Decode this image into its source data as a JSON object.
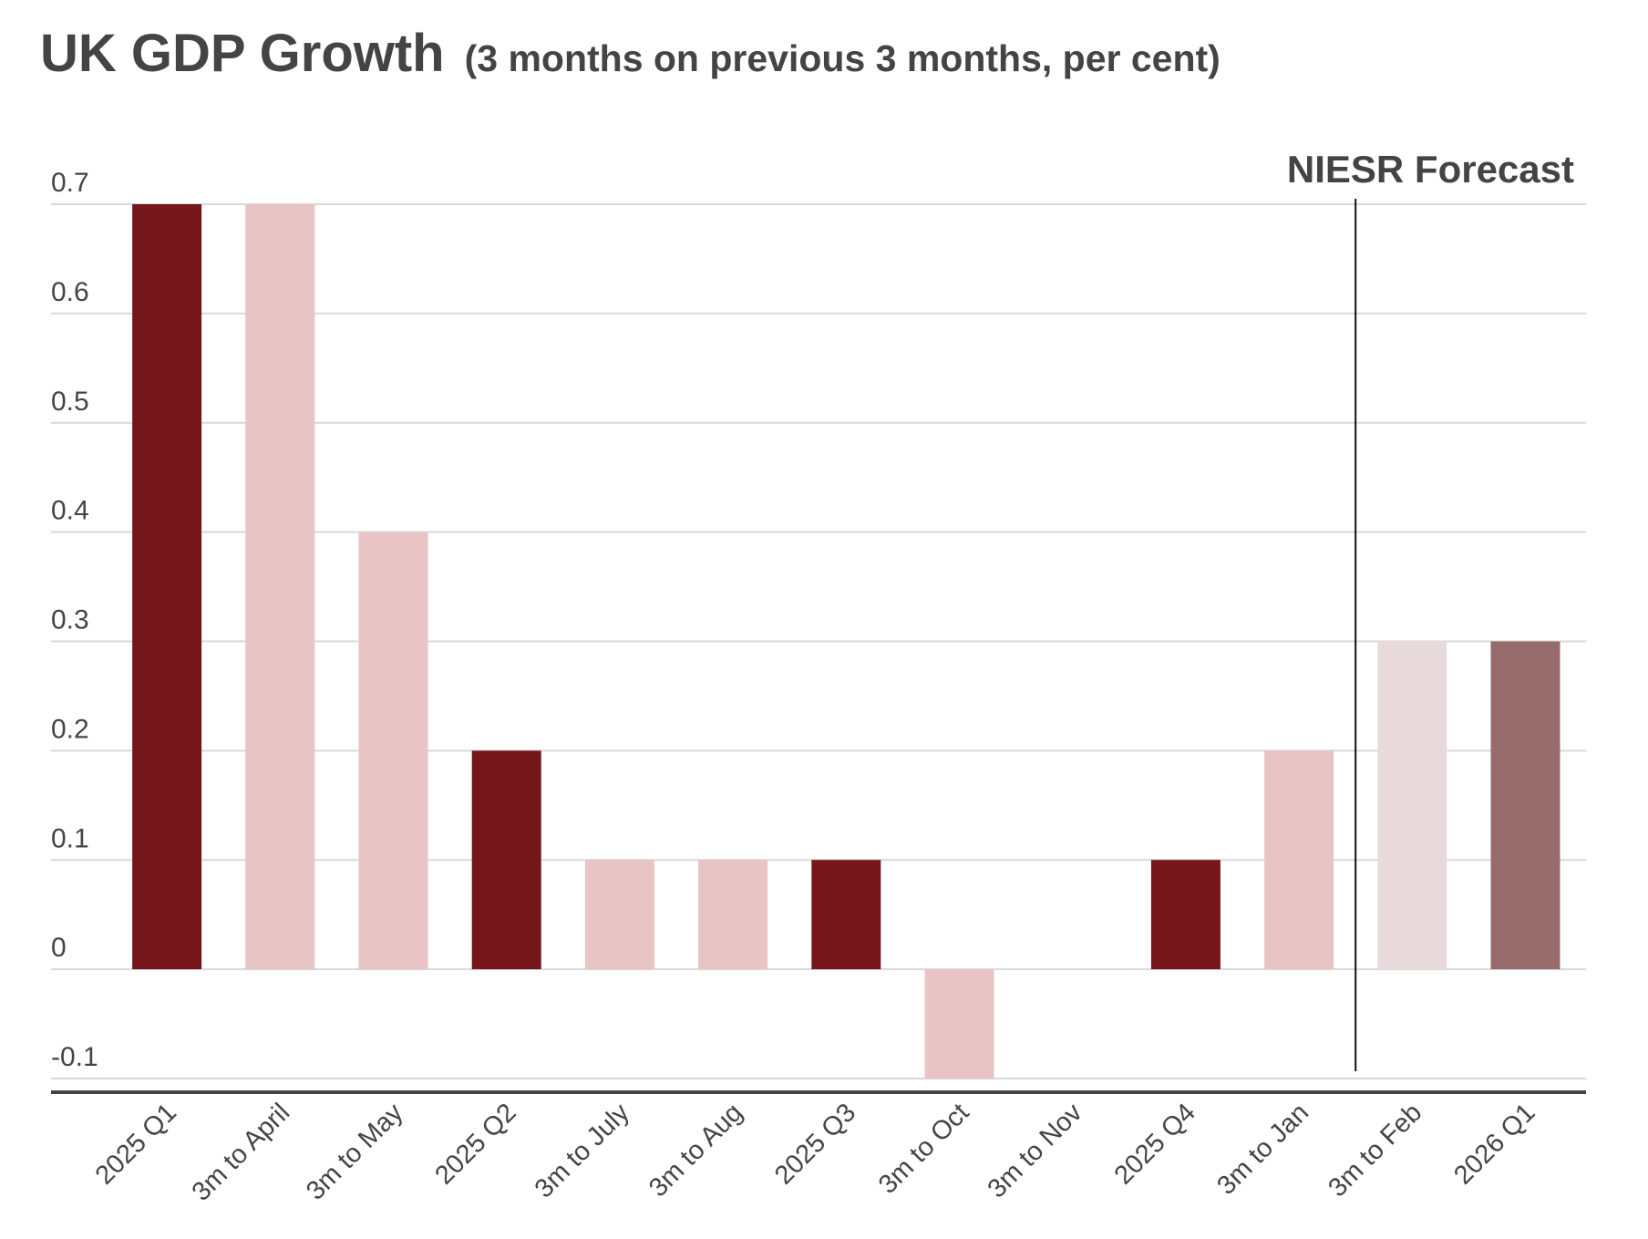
{
  "chart_data": {
    "type": "bar",
    "title": "UK GDP Growth",
    "subtitle": "(3 months on previous 3 months, per cent)",
    "annotation": "NIESR Forecast",
    "forecast_from": "3m to Feb",
    "categories": [
      "2025 Q1",
      "3m to April",
      "3m to May",
      "2025 Q2",
      "3m to July",
      "3m to Aug",
      "2025 Q3",
      "3m to Oct",
      "3m to Nov",
      "2025 Q4",
      "3m to Jan",
      "3m to Feb",
      "2026 Q1"
    ],
    "values": [
      0.7,
      0.7,
      0.4,
      0.2,
      0.1,
      0.1,
      0.1,
      -0.1,
      0,
      0.1,
      0.2,
      0.3,
      0.3
    ],
    "colors": [
      "#75161a",
      "#e9c4c4",
      "#e9c4c4",
      "#75161a",
      "#e9c4c4",
      "#e9c4c4",
      "#75161a",
      "#e9c4c4",
      "#e9c4c4",
      "#75161a",
      "#e9c4c4",
      "#e8dada",
      "#976b6b"
    ],
    "ylim": [
      -0.1,
      0.7
    ],
    "yticks": [
      -0.1,
      0,
      0.1,
      0.2,
      0.3,
      0.4,
      0.5,
      0.6,
      0.7
    ],
    "grid": true
  }
}
